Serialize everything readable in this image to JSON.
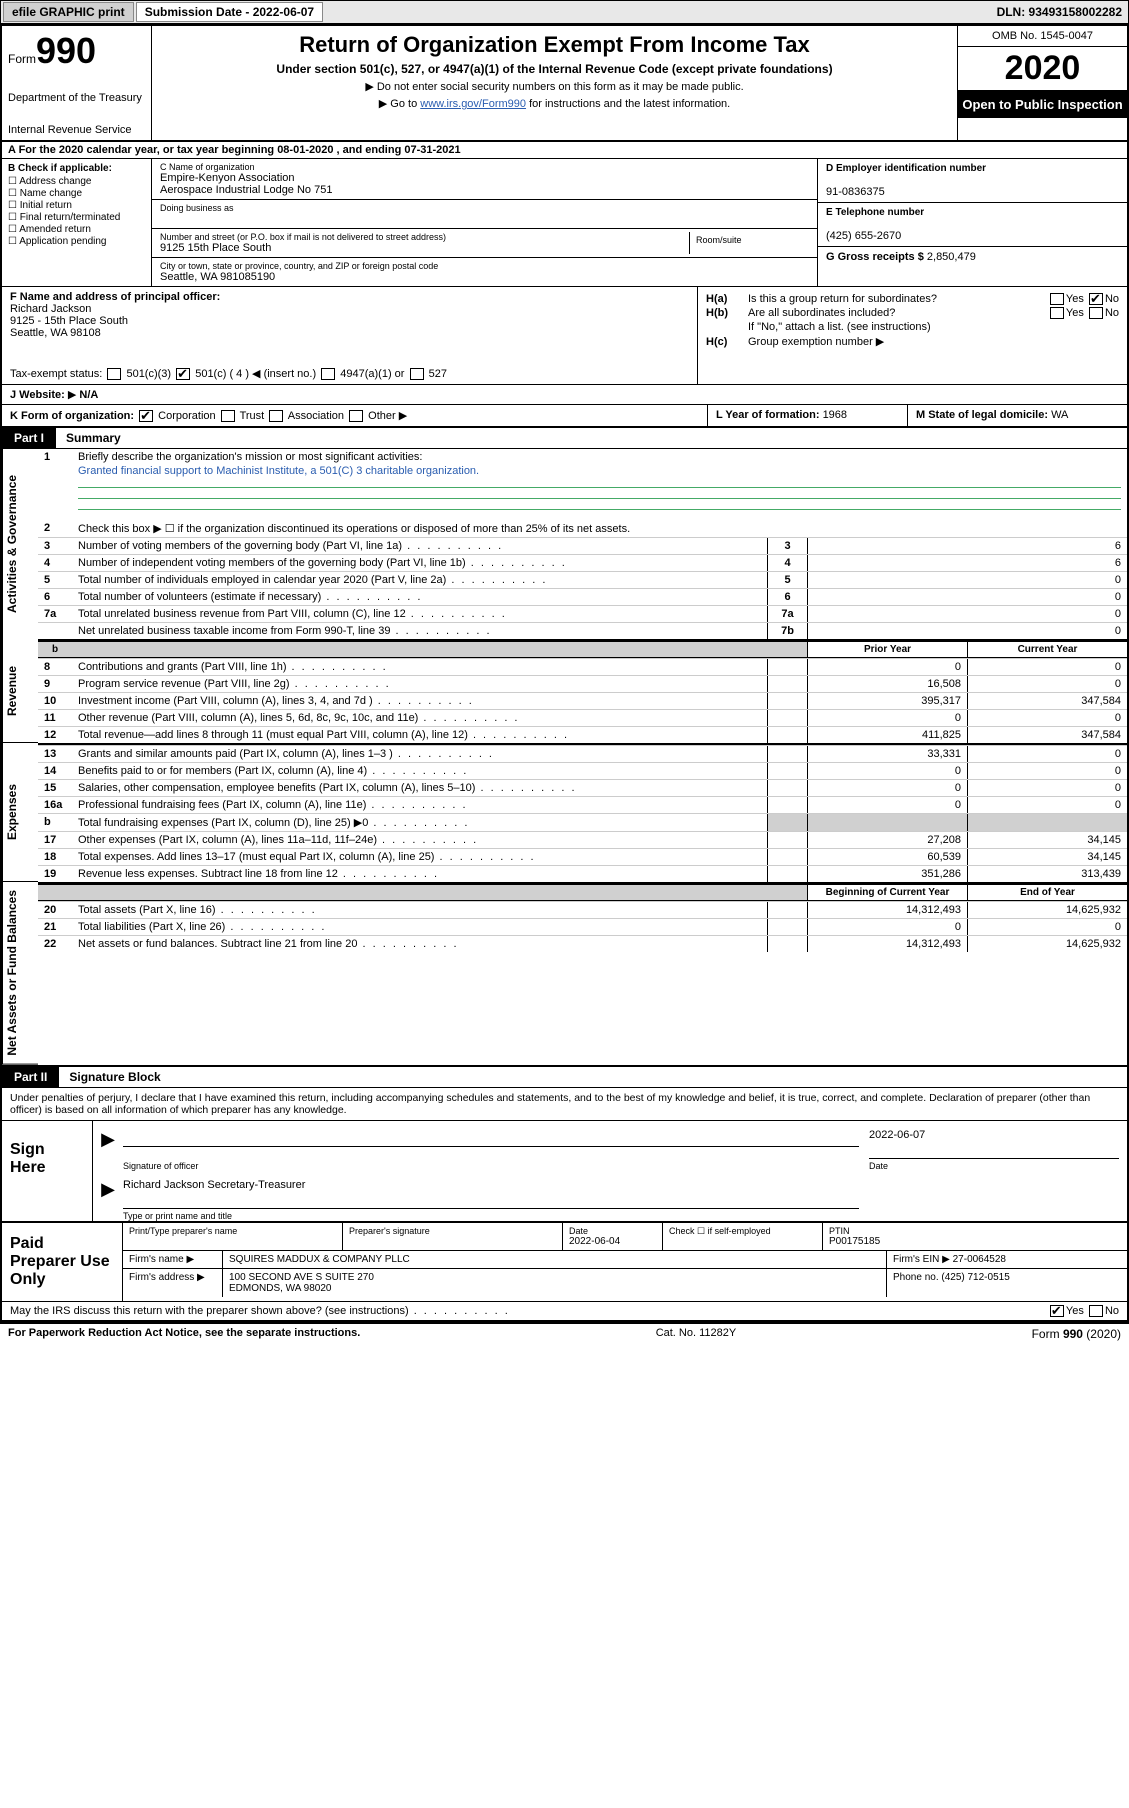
{
  "colors": {
    "black": "#000000",
    "white": "#ffffff",
    "link": "#2a5db0",
    "shade": "#d0d0d0",
    "topbar_bg": "#e8e8e8",
    "underline": "#44aa66"
  },
  "topbar": {
    "efile": "efile GRAPHIC print",
    "sub_label": "Submission Date - 2022-06-07",
    "dln": "DLN: 93493158002282"
  },
  "header": {
    "form_word": "Form",
    "form_num": "990",
    "dept": "Department of the Treasury",
    "irs": "Internal Revenue Service",
    "title": "Return of Organization Exempt From Income Tax",
    "sub": "Under section 501(c), 527, or 4947(a)(1) of the Internal Revenue Code (except private foundations)",
    "note1": "Do not enter social security numbers on this form as it may be made public.",
    "note2_pre": "Go to ",
    "note2_link": "www.irs.gov/Form990",
    "note2_post": " for instructions and the latest information.",
    "omb": "OMB No. 1545-0047",
    "year": "2020",
    "open": "Open to Public Inspection"
  },
  "row_a": "A For the 2020 calendar year, or tax year beginning 08-01-2020    , and ending 07-31-2021",
  "col_b": {
    "hdr": "B Check if applicable:",
    "opts": [
      "Address change",
      "Name change",
      "Initial return",
      "Final return/terminated",
      "Amended return",
      "Application pending"
    ]
  },
  "col_c": {
    "name_lbl": "C Name of organization",
    "name1": "Empire-Kenyon Association",
    "name2": "Aerospace Industrial Lodge No 751",
    "dba_lbl": "Doing business as",
    "dba": "",
    "street_lbl": "Number and street (or P.O. box if mail is not delivered to street address)",
    "street": "9125 15th Place South",
    "room_lbl": "Room/suite",
    "city_lbl": "City or town, state or province, country, and ZIP or foreign postal code",
    "city": "Seattle, WA  981085190"
  },
  "col_d": {
    "ein_lbl": "D Employer identification number",
    "ein": "91-0836375",
    "phone_lbl": "E Telephone number",
    "phone": "(425) 655-2670",
    "gross_lbl": "G Gross receipts $ ",
    "gross": "2,850,479"
  },
  "col_f": {
    "lbl": "F  Name and address of principal officer:",
    "name": "Richard Jackson",
    "addr1": "9125 - 15th Place South",
    "addr2": "Seattle, WA  98108",
    "tax_lbl": "Tax-exempt status:",
    "s1": "501(c)(3)",
    "s2": "501(c) ( 4 ) ◀ (insert no.)",
    "s3": "4947(a)(1) or",
    "s4": "527"
  },
  "col_h": {
    "ha_key": "H(a)",
    "ha_txt": "Is this a group return for subordinates?",
    "hb_key": "H(b)",
    "hb_txt": "Are all subordinates included?",
    "hb_note": "If \"No,\" attach a list. (see instructions)",
    "hc_key": "H(c)",
    "hc_txt": "Group exemption number ▶",
    "yes": "Yes",
    "no": "No"
  },
  "row_j": {
    "lbl": "J  Website:",
    "val": "N/A"
  },
  "row_k": {
    "lbl": "K Form of organization:",
    "opts": [
      "Corporation",
      "Trust",
      "Association",
      "Other ▶"
    ],
    "l_lbl": "L Year of formation: ",
    "l_val": "1968",
    "m_lbl": "M State of legal domicile: ",
    "m_val": "WA"
  },
  "part1": {
    "badge": "Part I",
    "title": "Summary"
  },
  "part2": {
    "badge": "Part II",
    "title": "Signature Block"
  },
  "sections": {
    "gov": "Activities & Governance",
    "rev": "Revenue",
    "exp": "Expenses",
    "net": "Net Assets or Fund Balances"
  },
  "summary": {
    "l1": "Briefly describe the organization's mission or most significant activities:",
    "l1_mission": "Granted financial support to Machinist Institute, a 501(C) 3 charitable organization.",
    "l2": "Check this box ▶ ☐  if the organization discontinued its operations or disposed of more than 25% of its net assets.",
    "l3": "Number of voting members of the governing body (Part VI, line 1a)",
    "l4": "Number of independent voting members of the governing body (Part VI, line 1b)",
    "l5": "Total number of individuals employed in calendar year 2020 (Part V, line 2a)",
    "l6": "Total number of volunteers (estimate if necessary)",
    "l7a": "Total unrelated business revenue from Part VIII, column (C), line 12",
    "l7b": "Net unrelated business taxable income from Form 990-T, line 39",
    "v3": "6",
    "v4": "6",
    "v5": "0",
    "v6": "0",
    "v7a": "0",
    "v7b": "0",
    "hdr_b": "b",
    "hdr_prior": "Prior Year",
    "hdr_curr": "Current Year",
    "hdr_boy": "Beginning of Current Year",
    "hdr_eoy": "End of Year",
    "rows_rev": [
      {
        "n": "8",
        "t": "Contributions and grants (Part VIII, line 1h)",
        "p": "0",
        "c": "0"
      },
      {
        "n": "9",
        "t": "Program service revenue (Part VIII, line 2g)",
        "p": "16,508",
        "c": "0"
      },
      {
        "n": "10",
        "t": "Investment income (Part VIII, column (A), lines 3, 4, and 7d )",
        "p": "395,317",
        "c": "347,584"
      },
      {
        "n": "11",
        "t": "Other revenue (Part VIII, column (A), lines 5, 6d, 8c, 9c, 10c, and 11e)",
        "p": "0",
        "c": "0"
      },
      {
        "n": "12",
        "t": "Total revenue—add lines 8 through 11 (must equal Part VIII, column (A), line 12)",
        "p": "411,825",
        "c": "347,584"
      }
    ],
    "rows_exp": [
      {
        "n": "13",
        "t": "Grants and similar amounts paid (Part IX, column (A), lines 1–3 )",
        "p": "33,331",
        "c": "0"
      },
      {
        "n": "14",
        "t": "Benefits paid to or for members (Part IX, column (A), line 4)",
        "p": "0",
        "c": "0"
      },
      {
        "n": "15",
        "t": "Salaries, other compensation, employee benefits (Part IX, column (A), lines 5–10)",
        "p": "0",
        "c": "0"
      },
      {
        "n": "16a",
        "t": "Professional fundraising fees (Part IX, column (A), line 11e)",
        "p": "0",
        "c": "0"
      },
      {
        "n": "b",
        "t": "Total fundraising expenses (Part IX, column (D), line 25) ▶0",
        "p": "",
        "c": ""
      },
      {
        "n": "17",
        "t": "Other expenses (Part IX, column (A), lines 11a–11d, 11f–24e)",
        "p": "27,208",
        "c": "34,145"
      },
      {
        "n": "18",
        "t": "Total expenses. Add lines 13–17 (must equal Part IX, column (A), line 25)",
        "p": "60,539",
        "c": "34,145"
      },
      {
        "n": "19",
        "t": "Revenue less expenses. Subtract line 18 from line 12",
        "p": "351,286",
        "c": "313,439"
      }
    ],
    "rows_net": [
      {
        "n": "20",
        "t": "Total assets (Part X, line 16)",
        "p": "14,312,493",
        "c": "14,625,932"
      },
      {
        "n": "21",
        "t": "Total liabilities (Part X, line 26)",
        "p": "0",
        "c": "0"
      },
      {
        "n": "22",
        "t": "Net assets or fund balances. Subtract line 21 from line 20",
        "p": "14,312,493",
        "c": "14,625,932"
      }
    ]
  },
  "perjury": "Under penalties of perjury, I declare that I have examined this return, including accompanying schedules and statements, and to the best of my knowledge and belief, it is true, correct, and complete. Declaration of preparer (other than officer) is based on all information of which preparer has any knowledge.",
  "sign": {
    "label": "Sign Here",
    "sig_cap": "Signature of officer",
    "date": "2022-06-07",
    "date_cap": "Date",
    "name": "Richard Jackson  Secretary-Treasurer",
    "name_cap": "Type or print name and title"
  },
  "preparer": {
    "label": "Paid Preparer Use Only",
    "r1": {
      "c1_lbl": "Print/Type preparer's name",
      "c1": "",
      "c2_lbl": "Preparer's signature",
      "c2": "",
      "c3_lbl": "Date",
      "c3": "2022-06-04",
      "c4_lbl": "Check ☐ if self-employed",
      "c5_lbl": "PTIN",
      "c5": "P00175185"
    },
    "r2": {
      "lbl": "Firm's name    ▶",
      "val": "SQUIRES MADDUX & COMPANY PLLC",
      "ein_lbl": "Firm's EIN ▶ ",
      "ein": "27-0064528"
    },
    "r3": {
      "lbl": "Firm's address ▶",
      "val1": "100 SECOND AVE S SUITE 270",
      "val2": "EDMONDS, WA  98020",
      "ph_lbl": "Phone no. ",
      "ph": "(425) 712-0515"
    }
  },
  "discuss": {
    "txt": "May the IRS discuss this return with the preparer shown above? (see instructions)",
    "yes": "Yes",
    "no": "No"
  },
  "footer": {
    "left": "For Paperwork Reduction Act Notice, see the separate instructions.",
    "mid": "Cat. No. 11282Y",
    "right_pre": "Form ",
    "right_num": "990",
    "right_post": " (2020)"
  }
}
